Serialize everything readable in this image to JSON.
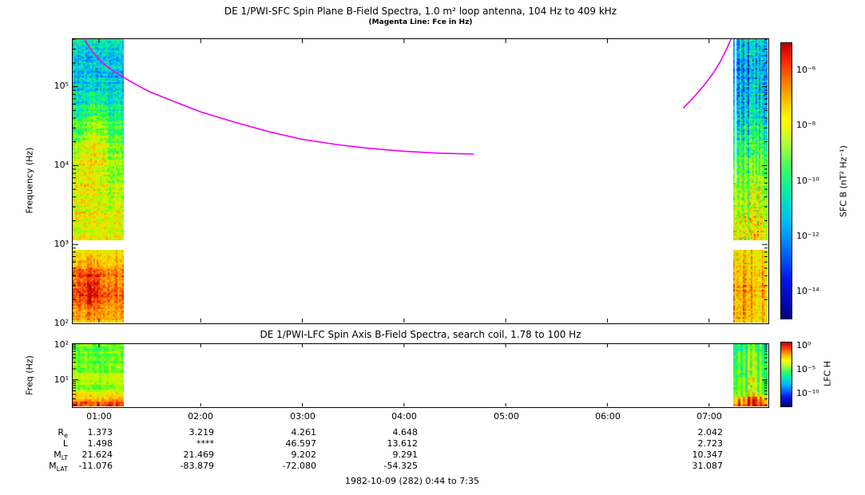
{
  "chart_data": [
    {
      "type": "heatmap",
      "panel": "SFC",
      "title": "DE 1/PWI-SFC  Spin Plane B-Field Spectra, 1.0 m² loop antenna, 104 Hz to 409 kHz",
      "subtitle": "(Magenta Line: Fce in Hz)",
      "ylabel": "Frequency (Hz)",
      "yscale": "log",
      "ylim_hz": [
        100,
        409000
      ],
      "yticks": [
        "10⁵",
        "10⁴",
        "10³",
        "10²"
      ],
      "xlim_time": [
        "0:44",
        "7:35"
      ],
      "colorbar_label": "SFC B (nT² Hz⁻¹)",
      "colorbar_ticks": [
        "10⁻⁶",
        "10⁻⁸",
        "10⁻¹⁰",
        "10⁻¹²",
        "10⁻¹⁴"
      ],
      "data_coverage_time": [
        [
          "0:44",
          "1:15"
        ],
        [
          "7:10",
          "7:35"
        ]
      ],
      "coverage_gap_hz": [
        900,
        1300
      ],
      "spectral_character": [
        {
          "segment": "left",
          "description": "red-orange below 1 kHz, yellow-green 1-10 kHz, cyan-blue 10-100 kHz, blue above 100 kHz"
        },
        {
          "segment": "right",
          "description": "dark blue with bright cyan vertical bursts at high frequency, green-cyan mid band, yellow-orange at low frequency"
        }
      ],
      "fce_line": {
        "color": "#ee00ee",
        "left_points_min_hz": [
          [
            51,
            410000
          ],
          [
            56,
            280000
          ],
          [
            62,
            200000
          ],
          [
            70,
            150000
          ],
          [
            80,
            112000
          ],
          [
            90,
            86000
          ],
          [
            105,
            64000
          ],
          [
            120,
            48000
          ],
          [
            140,
            35500
          ],
          [
            160,
            27000
          ],
          [
            180,
            21500
          ],
          [
            200,
            18500
          ],
          [
            220,
            16500
          ],
          [
            240,
            15200
          ],
          [
            260,
            14400
          ],
          [
            281,
            14000
          ]
        ],
        "right_points_min_hz": [
          [
            405,
            54000
          ],
          [
            412,
            78000
          ],
          [
            418,
            110000
          ],
          [
            423,
            155000
          ],
          [
            427,
            215000
          ],
          [
            430,
            290000
          ],
          [
            433,
            400000
          ]
        ]
      }
    },
    {
      "type": "heatmap",
      "panel": "LFC",
      "title": "DE 1/PWI-LFC  Spin Axis B-Field Spectra, search coil, 1.78 to 100 Hz",
      "ylabel": "Freq (Hz)",
      "yscale": "log",
      "ylim_hz": [
        1.78,
        100
      ],
      "yticks": [
        "10²",
        "10¹"
      ],
      "xlim_time": [
        "0:44",
        "7:35"
      ],
      "colorbar_label": "LFC H",
      "colorbar_ticks": [
        "10⁰",
        "10⁻⁵",
        "10⁻¹⁰"
      ],
      "data_coverage_time": [
        [
          "0:44",
          "1:15"
        ],
        [
          "7:10",
          "7:35"
        ]
      ],
      "spectral_character": [
        {
          "segment": "left",
          "description": "green with yellow bands, red-orange band at lowest frequencies"
        },
        {
          "segment": "right",
          "description": "green-yellow vertical streaks with strong red band at bottom"
        }
      ]
    }
  ],
  "xaxis": {
    "ticks": [
      "01:00",
      "02:00",
      "03:00",
      "04:00",
      "05:00",
      "06:00",
      "07:00"
    ]
  },
  "ephemeris": {
    "rows": [
      {
        "label": "R",
        "sub": "e",
        "values": [
          "1.373",
          "3.219",
          "4.261",
          "4.648",
          "",
          "",
          "2.042"
        ]
      },
      {
        "label": "L",
        "sub": "",
        "values": [
          "1.498",
          "****",
          "46.597",
          "13.612",
          "",
          "",
          "2.723"
        ]
      },
      {
        "label": "M",
        "sub": "LT",
        "values": [
          "21.624",
          "21.469",
          "9.202",
          "9.291",
          "",
          "",
          "10.347"
        ]
      },
      {
        "label": "M",
        "sub": "LAT",
        "values": [
          "-11.076",
          "-83.879",
          "-72.080",
          "-54.325",
          "",
          "",
          "31.087"
        ]
      }
    ]
  },
  "footer": "1982-10-09 (282) 0:44 to 7:35"
}
